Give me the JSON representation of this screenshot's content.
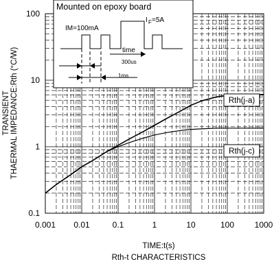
{
  "chart_data": {
    "type": "line",
    "title": "Rth-t CHARACTERISTICS",
    "xlabel": "TIME:t(s)",
    "ylabel_line1": "TRANSIENT",
    "ylabel_line2": "THAERMAL IMPEDANCE:Rth (°C/W)",
    "x_scale": "log",
    "y_scale": "log",
    "xlim": [
      0.001,
      1000
    ],
    "ylim": [
      0.1,
      100
    ],
    "x_ticks": [
      "0.001",
      "0.01",
      "0.1",
      "1",
      "10",
      "100",
      "1000"
    ],
    "y_ticks": [
      "0.1",
      "1",
      "10",
      "100"
    ],
    "grid": true,
    "series": [
      {
        "name": "Rth(j-a)",
        "x": [
          0.001,
          0.002,
          0.005,
          0.01,
          0.02,
          0.05,
          0.1,
          0.2,
          0.5,
          1,
          2,
          5,
          10,
          20,
          50,
          100,
          200,
          500,
          1000
        ],
        "y": [
          0.2,
          0.27,
          0.38,
          0.5,
          0.62,
          0.85,
          1.05,
          1.3,
          1.7,
          2.1,
          2.6,
          3.4,
          4.2,
          4.9,
          5.6,
          5.9,
          6.0,
          6.1,
          6.1
        ]
      },
      {
        "name": "Rth(j-c)",
        "x": [
          0.001,
          0.002,
          0.005,
          0.01,
          0.02,
          0.05,
          0.1,
          0.2,
          0.5,
          1,
          2,
          5,
          10,
          20,
          50,
          100,
          200,
          500,
          1000
        ],
        "y": [
          0.2,
          0.27,
          0.38,
          0.5,
          0.62,
          0.85,
          1.0,
          1.15,
          1.35,
          1.5,
          1.62,
          1.75,
          1.82,
          1.86,
          1.9,
          1.9,
          1.9,
          1.9,
          1.9
        ]
      }
    ],
    "inset": {
      "title": "Mounted on epoxy board",
      "im_label": "IM=100mA",
      "if_label_main": "I",
      "if_label_sub": "F",
      "if_label_value": "=5A",
      "time_label": "time",
      "pulse_width_label": "300us",
      "period_label": "1ms"
    }
  }
}
